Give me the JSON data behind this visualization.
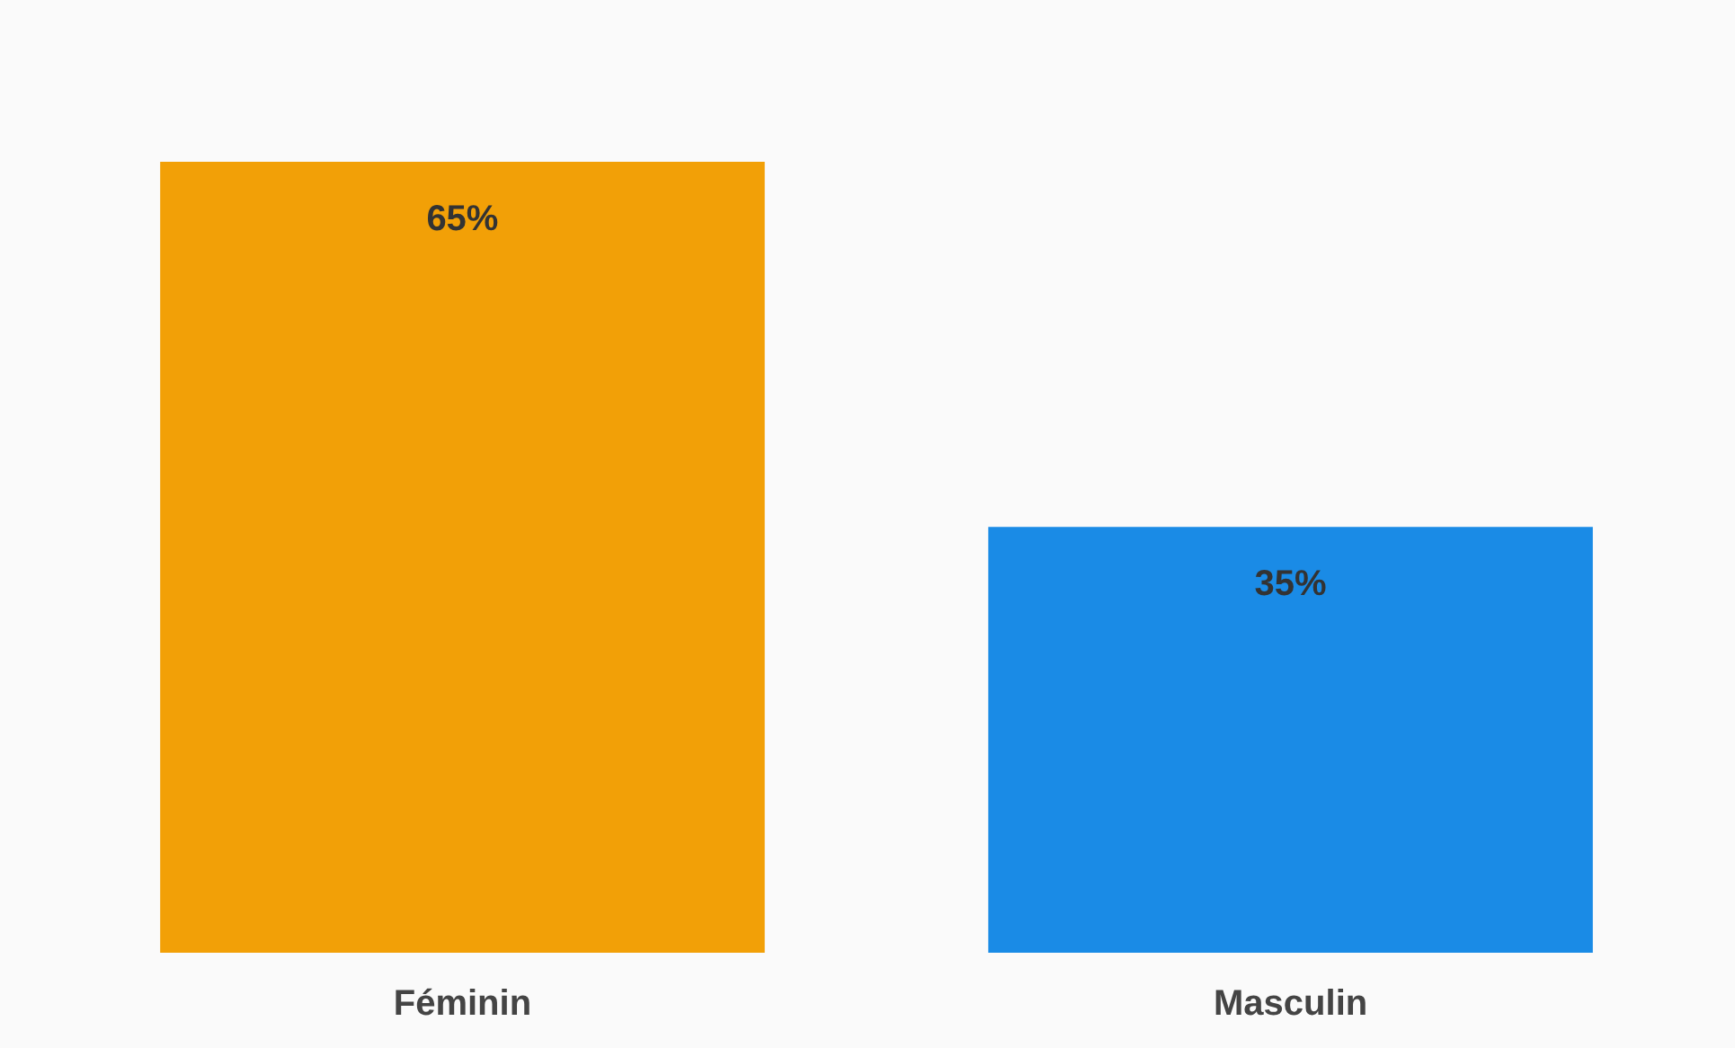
{
  "chart_data": {
    "type": "bar",
    "categories": [
      "Féminin",
      "Masculin"
    ],
    "values": [
      65,
      35
    ],
    "colors": [
      "#f2a007",
      "#1a8be6"
    ],
    "value_labels": [
      "65%",
      "35%"
    ],
    "tick_labels": "x"
  }
}
